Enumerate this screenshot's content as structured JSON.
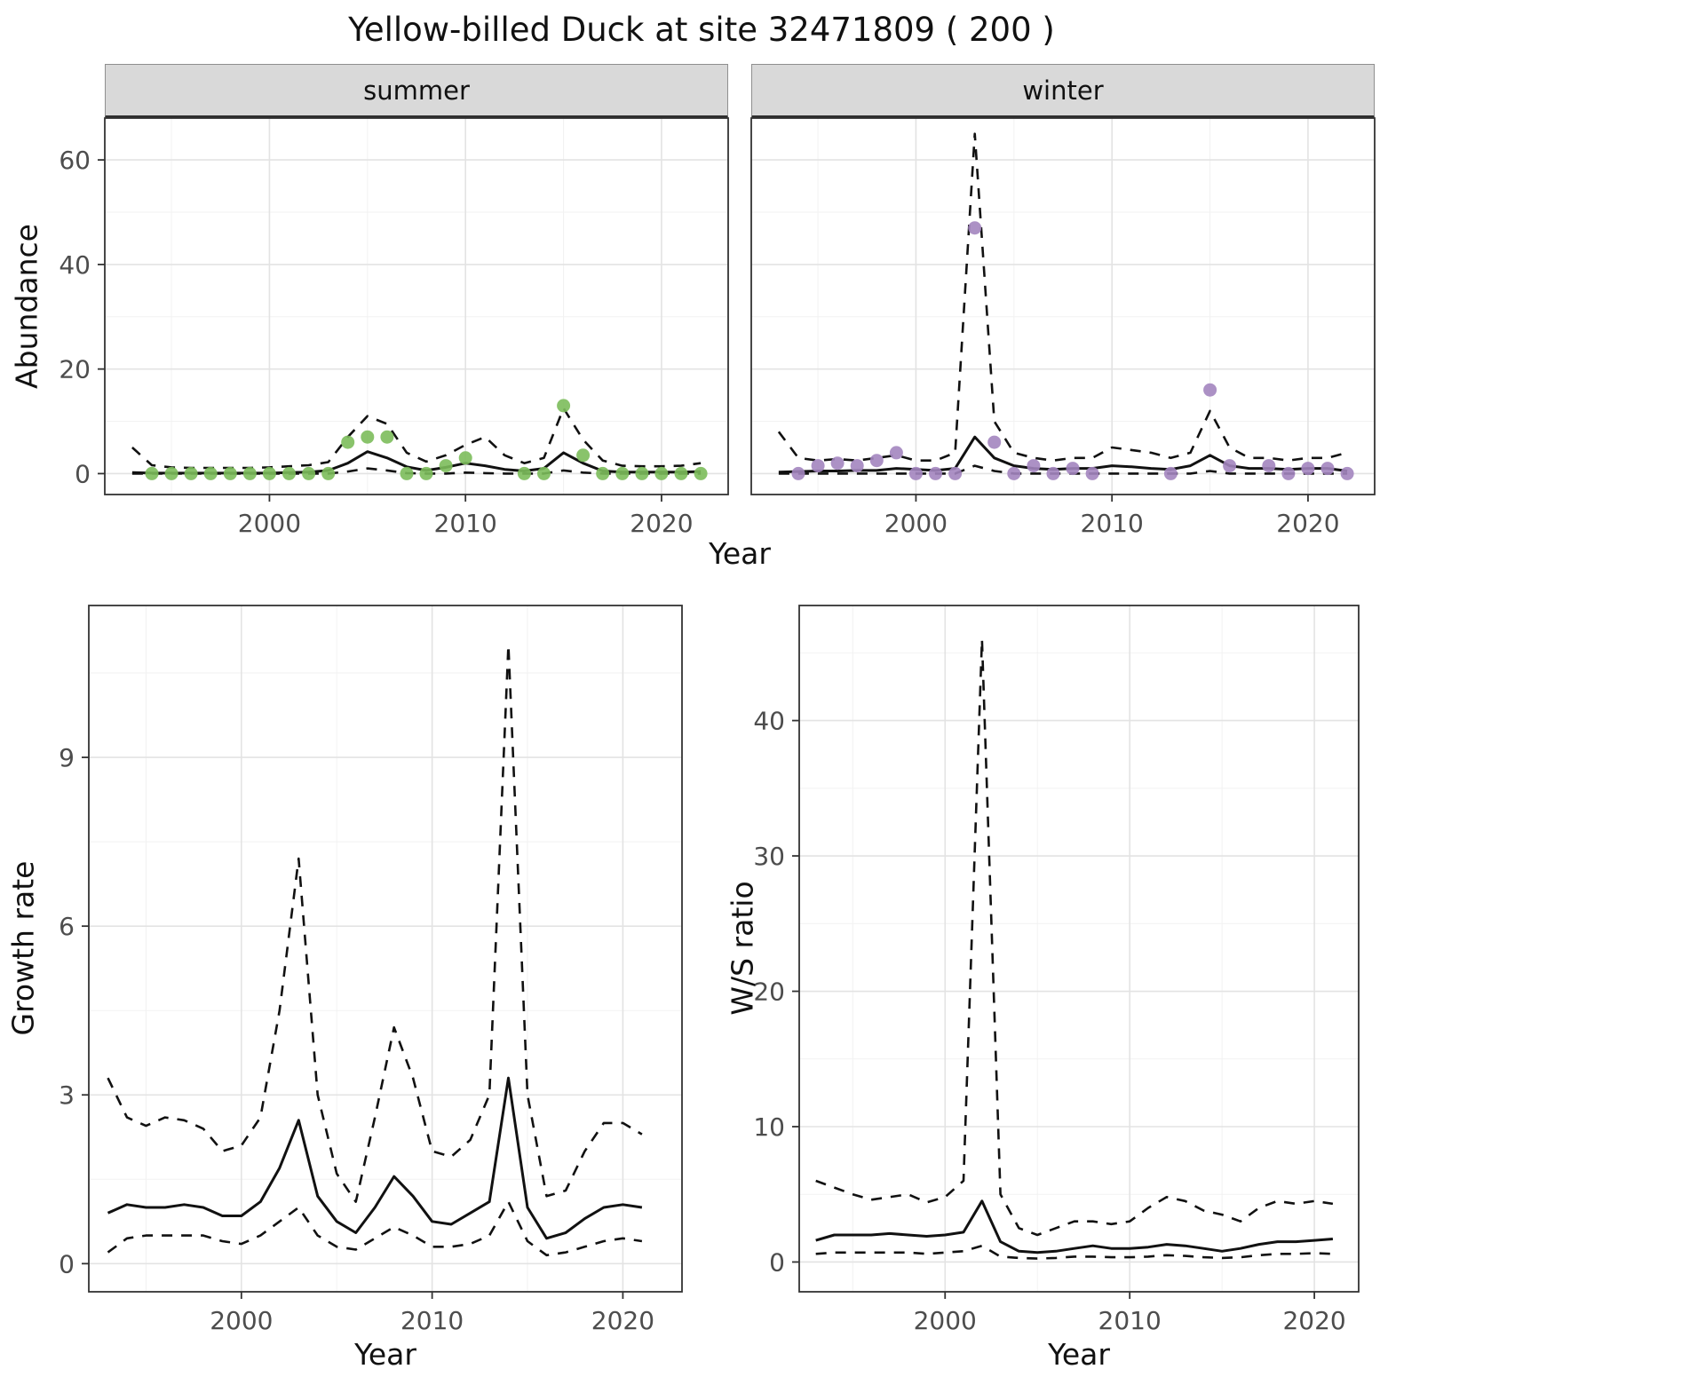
{
  "title": "Yellow-billed Duck at site 32471809 ( 200 )",
  "colors": {
    "line": "#111111",
    "grid_major": "#e3e3e3",
    "grid_minor": "#f2f2f2",
    "panel_border": "#333333",
    "strip_bg": "#d9d9d9",
    "summer_point": "#7cbd5b",
    "winter_point": "#a385bf"
  },
  "chart_data": [
    {
      "id": "abundance-summer",
      "type": "line",
      "facet": "summer",
      "xlabel": "Year",
      "ylabel": "Abundance",
      "xlim": [
        1991.6,
        2023.4
      ],
      "ylim": [
        -4,
        68
      ],
      "xticks": [
        2000,
        2010,
        2020
      ],
      "yticks": [
        0,
        20,
        40,
        60
      ],
      "xminor": [
        1995,
        2005,
        2015
      ],
      "yminor": [
        10,
        30,
        50
      ],
      "x": [
        1993,
        1994,
        1995,
        1996,
        1997,
        1998,
        1999,
        2000,
        2001,
        2002,
        2003,
        2004,
        2005,
        2006,
        2007,
        2008,
        2009,
        2010,
        2011,
        2012,
        2013,
        2014,
        2015,
        2016,
        2017,
        2018,
        2019,
        2020,
        2021,
        2022
      ],
      "series": [
        {
          "name": "median",
          "style": "solid",
          "values": [
            0.2,
            0.1,
            0.1,
            0.1,
            0.1,
            0.1,
            0.1,
            0.1,
            0.2,
            0.3,
            0.6,
            2.0,
            4.2,
            3.0,
            1.3,
            0.6,
            1.2,
            2.0,
            1.5,
            0.8,
            0.5,
            1.0,
            4.0,
            2.0,
            0.5,
            0.3,
            0.3,
            0.3,
            0.3,
            0.4
          ]
        },
        {
          "name": "upper-ci",
          "style": "dashed",
          "values": [
            5.0,
            1.6,
            1.2,
            1.1,
            1.1,
            1.1,
            1.1,
            1.2,
            1.4,
            1.6,
            2.2,
            7.0,
            11.0,
            9.5,
            4.0,
            2.3,
            3.5,
            5.5,
            7.0,
            3.5,
            2.0,
            3.0,
            12.5,
            6.5,
            2.5,
            1.5,
            1.4,
            1.4,
            1.5,
            2.0
          ]
        },
        {
          "name": "lower-ci",
          "style": "dashed",
          "values": [
            0,
            0,
            0,
            0,
            0,
            0,
            0,
            0,
            0,
            0,
            0,
            0.4,
            1.0,
            0.6,
            0.1,
            0,
            0,
            0.2,
            0.1,
            0,
            0,
            0,
            0.6,
            0.2,
            0,
            0,
            0,
            0,
            0,
            0
          ]
        }
      ],
      "points": {
        "name": "observed-counts",
        "color": "#7cbd5b",
        "data": [
          [
            1994,
            0
          ],
          [
            1995,
            0
          ],
          [
            1996,
            0
          ],
          [
            1997,
            0
          ],
          [
            1998,
            0
          ],
          [
            1999,
            0
          ],
          [
            2000,
            0
          ],
          [
            2001,
            0
          ],
          [
            2002,
            0
          ],
          [
            2003,
            0
          ],
          [
            2004,
            6
          ],
          [
            2005,
            7
          ],
          [
            2006,
            7
          ],
          [
            2007,
            0
          ],
          [
            2008,
            0
          ],
          [
            2009,
            1.5
          ],
          [
            2010,
            3
          ],
          [
            2013,
            0
          ],
          [
            2014,
            0
          ],
          [
            2015,
            13
          ],
          [
            2016,
            3.5
          ],
          [
            2017,
            0
          ],
          [
            2018,
            0
          ],
          [
            2019,
            0
          ],
          [
            2020,
            0
          ],
          [
            2021,
            0
          ],
          [
            2022,
            0
          ]
        ]
      }
    },
    {
      "id": "abundance-winter",
      "type": "line",
      "facet": "winter",
      "xlabel": "Year",
      "ylabel": "Abundance",
      "xlim": [
        1991.6,
        2023.4
      ],
      "ylim": [
        -4,
        68
      ],
      "xticks": [
        2000,
        2010,
        2020
      ],
      "yticks": [
        0,
        20,
        40,
        60
      ],
      "xminor": [
        1995,
        2005,
        2015
      ],
      "yminor": [
        10,
        30,
        50
      ],
      "x": [
        1993,
        1994,
        1995,
        1996,
        1997,
        1998,
        1999,
        2000,
        2001,
        2002,
        2003,
        2004,
        2005,
        2006,
        2007,
        2008,
        2009,
        2010,
        2011,
        2012,
        2013,
        2014,
        2015,
        2016,
        2017,
        2018,
        2019,
        2020,
        2021,
        2022
      ],
      "series": [
        {
          "name": "median",
          "style": "solid",
          "values": [
            0.3,
            0.4,
            0.5,
            0.5,
            0.6,
            0.6,
            1.0,
            0.8,
            0.6,
            1.0,
            7.0,
            3.0,
            1.5,
            1.0,
            0.8,
            1.0,
            1.0,
            1.5,
            1.3,
            1.0,
            0.8,
            1.5,
            3.5,
            1.5,
            1.0,
            1.0,
            0.8,
            1.0,
            1.0,
            0.5
          ]
        },
        {
          "name": "upper-ci",
          "style": "dashed",
          "values": [
            8.0,
            3.0,
            2.5,
            2.8,
            2.5,
            3.0,
            3.5,
            2.5,
            2.5,
            4.0,
            65.0,
            10.0,
            4.0,
            3.0,
            2.5,
            3.0,
            3.0,
            5.0,
            4.5,
            4.0,
            3.0,
            4.0,
            12.0,
            5.0,
            3.0,
            3.0,
            2.5,
            3.0,
            3.0,
            4.0
          ]
        },
        {
          "name": "lower-ci",
          "style": "dashed",
          "values": [
            0,
            0,
            0,
            0,
            0,
            0,
            0,
            0,
            0,
            0,
            1.5,
            0.5,
            0,
            0,
            0,
            0,
            0,
            0,
            0,
            0,
            0,
            0,
            0.5,
            0,
            0,
            0,
            0,
            0,
            0,
            0
          ]
        }
      ],
      "points": {
        "name": "observed-counts",
        "color": "#a385bf",
        "data": [
          [
            1994,
            0
          ],
          [
            1995,
            1.5
          ],
          [
            1996,
            2
          ],
          [
            1997,
            1.5
          ],
          [
            1998,
            2.5
          ],
          [
            1999,
            4
          ],
          [
            2000,
            0
          ],
          [
            2001,
            0
          ],
          [
            2002,
            0
          ],
          [
            2003,
            47
          ],
          [
            2004,
            6
          ],
          [
            2005,
            0
          ],
          [
            2006,
            1.5
          ],
          [
            2007,
            0
          ],
          [
            2008,
            1
          ],
          [
            2009,
            0
          ],
          [
            2013,
            0
          ],
          [
            2015,
            16
          ],
          [
            2016,
            1.5
          ],
          [
            2018,
            1.5
          ],
          [
            2019,
            0
          ],
          [
            2020,
            1
          ],
          [
            2021,
            1
          ],
          [
            2022,
            0
          ]
        ]
      }
    },
    {
      "id": "growth-rate",
      "type": "line",
      "xlabel": "Year",
      "ylabel": "Growth rate",
      "xlim": [
        1992.0,
        2023.1
      ],
      "ylim": [
        -0.5,
        11.7
      ],
      "xticks": [
        2000,
        2010,
        2020
      ],
      "yticks": [
        0,
        3,
        6,
        9
      ],
      "xminor": [
        1995,
        2005,
        2015
      ],
      "yminor": [
        1.5,
        4.5,
        7.5,
        10.5
      ],
      "x": [
        1993,
        1994,
        1995,
        1996,
        1997,
        1998,
        1999,
        2000,
        2001,
        2002,
        2003,
        2004,
        2005,
        2006,
        2007,
        2008,
        2009,
        2010,
        2011,
        2012,
        2013,
        2014,
        2015,
        2016,
        2017,
        2018,
        2019,
        2020,
        2021
      ],
      "series": [
        {
          "name": "median",
          "style": "solid",
          "values": [
            0.9,
            1.05,
            1.0,
            1.0,
            1.05,
            1.0,
            0.85,
            0.85,
            1.1,
            1.7,
            2.55,
            1.2,
            0.75,
            0.55,
            1.0,
            1.55,
            1.2,
            0.75,
            0.7,
            0.9,
            1.1,
            3.3,
            1.0,
            0.45,
            0.55,
            0.8,
            1.0,
            1.05,
            1.0
          ]
        },
        {
          "name": "upper-ci",
          "style": "dashed",
          "values": [
            3.3,
            2.6,
            2.45,
            2.6,
            2.55,
            2.4,
            2.0,
            2.1,
            2.6,
            4.5,
            7.2,
            3.0,
            1.6,
            1.1,
            2.6,
            4.2,
            3.3,
            2.0,
            1.9,
            2.2,
            3.0,
            11.0,
            3.0,
            1.2,
            1.3,
            2.0,
            2.5,
            2.5,
            2.3
          ]
        },
        {
          "name": "lower-ci",
          "style": "dashed",
          "values": [
            0.2,
            0.45,
            0.5,
            0.5,
            0.5,
            0.5,
            0.4,
            0.35,
            0.5,
            0.75,
            1.0,
            0.5,
            0.3,
            0.25,
            0.45,
            0.65,
            0.5,
            0.3,
            0.3,
            0.35,
            0.5,
            1.1,
            0.4,
            0.15,
            0.2,
            0.3,
            0.4,
            0.45,
            0.4
          ]
        }
      ]
    },
    {
      "id": "ws-ratio",
      "type": "line",
      "xlabel": "Year",
      "ylabel": "W/S ratio",
      "xlim": [
        1992.1,
        2022.4
      ],
      "ylim": [
        -2.2,
        48.5
      ],
      "xticks": [
        2000,
        2010,
        2020
      ],
      "yticks": [
        0,
        10,
        20,
        30,
        40
      ],
      "xminor": [
        1995,
        2005,
        2015
      ],
      "yminor": [
        5,
        15,
        25,
        35,
        45
      ],
      "x": [
        1993,
        1994,
        1995,
        1996,
        1997,
        1998,
        1999,
        2000,
        2001,
        2002,
        2003,
        2004,
        2005,
        2006,
        2007,
        2008,
        2009,
        2010,
        2011,
        2012,
        2013,
        2014,
        2015,
        2016,
        2017,
        2018,
        2019,
        2020,
        2021
      ],
      "series": [
        {
          "name": "median",
          "style": "solid",
          "values": [
            1.6,
            2.0,
            2.0,
            2.0,
            2.1,
            2.0,
            1.9,
            2.0,
            2.2,
            4.5,
            1.5,
            0.8,
            0.7,
            0.8,
            1.0,
            1.2,
            1.0,
            1.0,
            1.1,
            1.3,
            1.2,
            1.0,
            0.8,
            1.0,
            1.3,
            1.5,
            1.5,
            1.6,
            1.7
          ]
        },
        {
          "name": "upper-ci",
          "style": "dashed",
          "values": [
            6.0,
            5.5,
            5.0,
            4.6,
            4.8,
            5.0,
            4.4,
            4.8,
            6.0,
            46.0,
            5.0,
            2.5,
            2.0,
            2.5,
            3.0,
            3.0,
            2.8,
            3.0,
            4.0,
            4.8,
            4.5,
            3.8,
            3.5,
            3.0,
            4.0,
            4.5,
            4.3,
            4.5,
            4.3
          ]
        },
        {
          "name": "lower-ci",
          "style": "dashed",
          "values": [
            0.6,
            0.7,
            0.7,
            0.7,
            0.7,
            0.7,
            0.6,
            0.7,
            0.8,
            1.2,
            0.4,
            0.3,
            0.25,
            0.3,
            0.4,
            0.4,
            0.35,
            0.35,
            0.4,
            0.5,
            0.45,
            0.35,
            0.3,
            0.35,
            0.5,
            0.6,
            0.6,
            0.65,
            0.6
          ]
        }
      ]
    }
  ]
}
